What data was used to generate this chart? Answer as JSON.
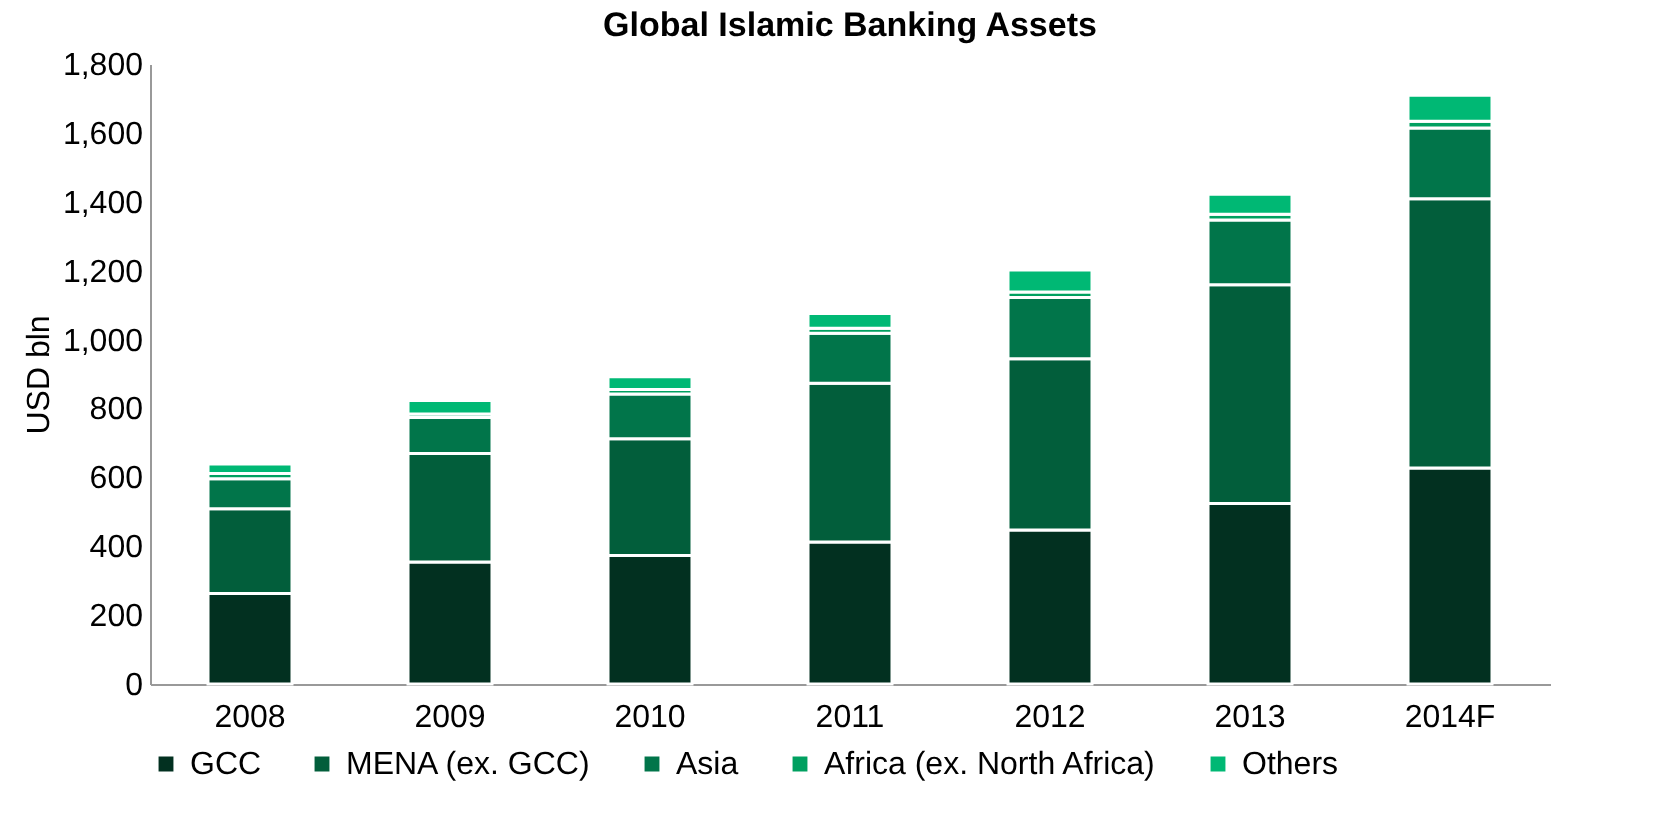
{
  "chart_data": {
    "type": "bar",
    "title": "Global Islamic Banking Assets",
    "ylabel": "USD bln",
    "stacked": true,
    "categories": [
      "2008",
      "2009",
      "2010",
      "2011",
      "2012",
      "2013",
      "2014F"
    ],
    "series": [
      {
        "name": "GCC",
        "color": "#023020",
        "values": [
          263,
          354,
          373,
          412,
          447,
          524,
          627
        ]
      },
      {
        "name": "MENA (ex. GCC)",
        "color": "#025e3b",
        "values": [
          246,
          315,
          339,
          461,
          497,
          635,
          782
        ]
      },
      {
        "name": "Asia",
        "color": "#01754a",
        "values": [
          87,
          105,
          130,
          145,
          178,
          188,
          205
        ]
      },
      {
        "name": "Africa (ex. North Africa)",
        "color": "#00a060",
        "values": [
          15,
          10,
          13,
          15,
          16,
          17,
          20
        ]
      },
      {
        "name": "Others",
        "color": "#00b874",
        "values": [
          28,
          39,
          37,
          43,
          64,
          58,
          75
        ]
      }
    ],
    "ylim": [
      0,
      1800
    ],
    "yticks": [
      0,
      200,
      400,
      600,
      800,
      {
        "value": 1000,
        "label": "1,000"
      },
      {
        "value": 1200,
        "label": "1,200"
      },
      {
        "value": 1400,
        "label": "1,400"
      },
      {
        "value": 1600,
        "label": "1,600"
      },
      {
        "value": 1800,
        "label": "1,800"
      }
    ],
    "grid": false,
    "legend": "bottom"
  }
}
